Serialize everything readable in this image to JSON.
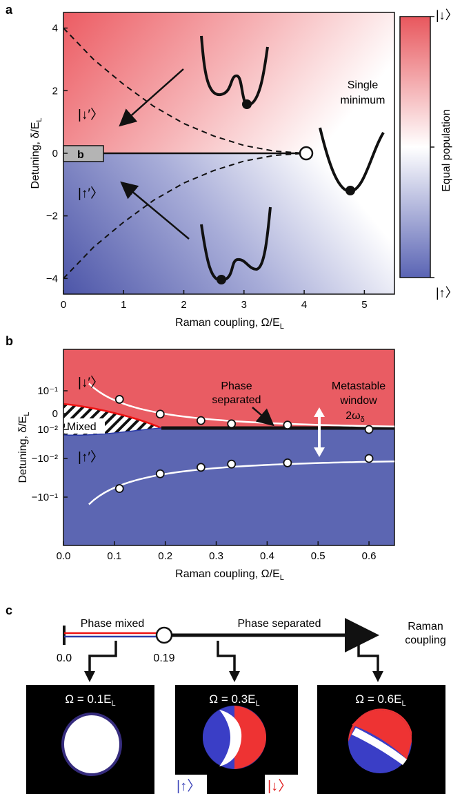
{
  "panels": {
    "a": {
      "panel_label": "a",
      "ylabel_main": "Detuning, δ/E",
      "ylabel_sub": "L",
      "xlabel_main": "Raman coupling, Ω/E",
      "xlabel_sub": "L",
      "x_ticks": [
        "0",
        "1",
        "2",
        "3",
        "4",
        "5"
      ],
      "y_ticks": [
        "4",
        "2",
        "0",
        "−2",
        "−4"
      ],
      "label_down": "|↓′〉",
      "label_up": "|↑′〉",
      "single_minimum_line1": "Single",
      "single_minimum_line2": "minimum",
      "inset_label": "b",
      "colorbar_label": "Equal population",
      "colorbar_top": "|↓〉",
      "colorbar_bottom": "|↑〉"
    },
    "b": {
      "panel_label": "b",
      "ylabel_main": "Detuning, δ/E",
      "ylabel_sub": "L",
      "xlabel_main": "Raman coupling, Ω/E",
      "xlabel_sub": "L",
      "x_ticks": [
        "0.0",
        "0.1",
        "0.2",
        "0.3",
        "0.4",
        "0.5",
        "0.6"
      ],
      "y_ticks": [
        "10⁻¹",
        "10⁻²",
        "0",
        "−10⁻²",
        "−10⁻¹"
      ],
      "label_down": "|↓′〉",
      "label_up": "|↑′〉",
      "mixed_label": "Mixed",
      "phase_sep_line1": "Phase",
      "phase_sep_line2": "separated",
      "metastable_line1": "Metastable",
      "metastable_line2": "window",
      "metastable_line3": "2ω",
      "metastable_sub": "δ"
    },
    "c": {
      "panel_label": "c",
      "phase_mixed": "Phase mixed",
      "phase_separated": "Phase separated",
      "raman_line1": "Raman",
      "raman_line2": "coupling",
      "tick_start": "0.0",
      "tick_critical": "0.19",
      "images": [
        {
          "label": "Ω = 0.1E",
          "sub": "L"
        },
        {
          "label": "Ω = 0.3E",
          "sub": "L"
        },
        {
          "label": "Ω = 0.6E",
          "sub": "L"
        }
      ],
      "legend_up": "|↑〉",
      "legend_down": "|↓〉"
    }
  },
  "colors": {
    "red": "#e8575d",
    "red_light": "#f4a0a2",
    "blue": "#5a64b4",
    "blue_light": "#a9aed8",
    "line": "#1a1a1a"
  },
  "chart_data": [
    {
      "type": "heatmap",
      "xlabel": "Raman coupling, Ω/E_L",
      "ylabel": "Detuning, δ/E_L",
      "xlim": [
        0,
        5.5
      ],
      "ylim": [
        -4.5,
        4.5
      ],
      "colorbar": [
        "|↑〉",
        "Equal population",
        "|↓〉"
      ],
      "phase_boundary": {
        "from": [
          0,
          0
        ],
        "to": [
          4,
          0
        ],
        "critical_point": [
          4,
          0
        ]
      },
      "metastable_curves": {
        "x": [
          0,
          0.5,
          1,
          1.5,
          2,
          2.5,
          3,
          3.5,
          4
        ],
        "upper": [
          4,
          3.0,
          2.2,
          1.5,
          0.95,
          0.55,
          0.25,
          0.07,
          0
        ],
        "lower": [
          -4,
          -3.0,
          -2.2,
          -1.5,
          -0.95,
          -0.55,
          -0.25,
          -0.07,
          0
        ]
      }
    },
    {
      "type": "scatter",
      "xlabel": "Raman coupling, Ω/E_L",
      "ylabel": "Detuning, δ/E_L",
      "xlim": [
        0,
        0.65
      ],
      "y_scale": "symlog",
      "series": [
        {
          "name": "|↓′〉",
          "x": [
            0.11,
            0.19,
            0.27,
            0.33,
            0.44,
            0.6
          ],
          "y": [
            0.06,
            0.025,
            0.017,
            0.014,
            0.013,
            0.01
          ]
        },
        {
          "name": "|↑′〉",
          "x": [
            0.11,
            0.19,
            0.27,
            0.33,
            0.44,
            0.6
          ],
          "y": [
            -0.06,
            -0.025,
            -0.017,
            -0.014,
            -0.013,
            -0.01
          ]
        }
      ],
      "mixed_region_x": [
        0,
        0.19
      ],
      "phase_separated_x": [
        0.19,
        0.65
      ]
    }
  ]
}
